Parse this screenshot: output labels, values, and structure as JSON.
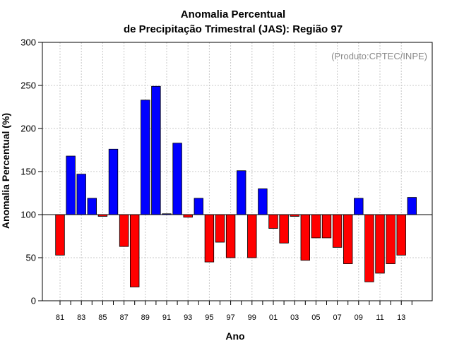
{
  "chart_data": {
    "type": "bar",
    "title_lines": [
      "Anomalia Percentual",
      "de Precipitação Trimestral (JAS): Região 97"
    ],
    "xlabel": "Ano",
    "ylabel": "Anomalia Percentual (%)",
    "credit": "(Produto:CPTEC/INPE)",
    "ylim": [
      0,
      300
    ],
    "yticks": [
      0,
      50,
      100,
      150,
      200,
      250,
      300
    ],
    "baseline": 100,
    "grid": true,
    "colors": {
      "above": "#0000ff",
      "below": "#ff0000",
      "outline": "#000000",
      "grid": "#c8c8c8"
    },
    "categories": [
      "81",
      "82",
      "83",
      "84",
      "85",
      "86",
      "87",
      "88",
      "89",
      "90",
      "91",
      "92",
      "93",
      "94",
      "95",
      "96",
      "97",
      "98",
      "99",
      "00",
      "01",
      "02",
      "03",
      "04",
      "05",
      "06",
      "07",
      "08",
      "09",
      "10",
      "11",
      "12",
      "13",
      "14"
    ],
    "tick_labels": [
      "81",
      "83",
      "85",
      "87",
      "89",
      "91",
      "93",
      "95",
      "97",
      "99",
      "01",
      "03",
      "05",
      "07",
      "09",
      "11",
      "13"
    ],
    "values": [
      53,
      168,
      147,
      119,
      98,
      176,
      63,
      16,
      233,
      249,
      101,
      183,
      97,
      119,
      45,
      68,
      50,
      151,
      50,
      130,
      84,
      67,
      98,
      47,
      73,
      73,
      62,
      43,
      119,
      22,
      32,
      43,
      53,
      120
    ]
  }
}
